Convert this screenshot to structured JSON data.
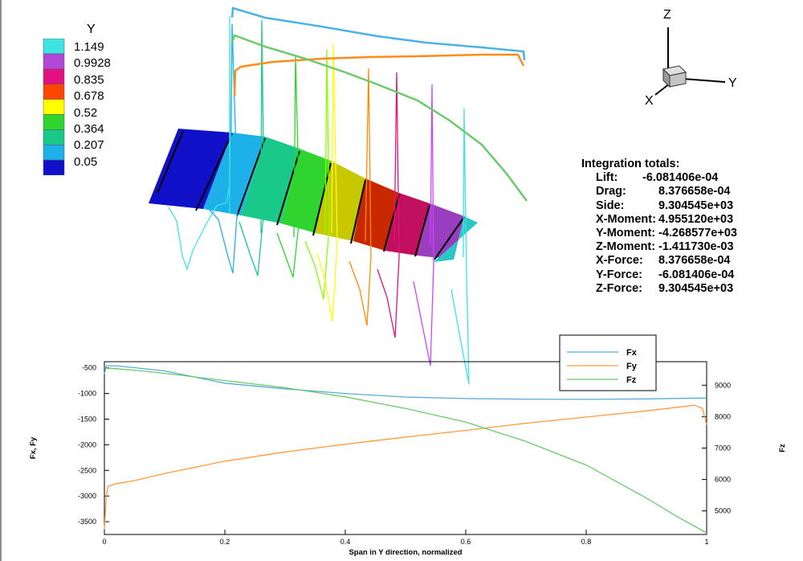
{
  "contour_legend": {
    "title": "Y",
    "levels": [
      "1.149",
      "0.9928",
      "0.835",
      "0.678",
      "0.52",
      "0.364",
      "0.207",
      "0.05"
    ],
    "colors": [
      "#3ee3e3",
      "#b048d8",
      "#e31082",
      "#ff4600",
      "#ffff00",
      "#2fd42f",
      "#18c98a",
      "#1eb0e8",
      "#1010c8"
    ]
  },
  "axis_triad": {
    "z": "Z",
    "y": "Y",
    "x": "X"
  },
  "integration_totals": {
    "title": "Integration totals:",
    "rows": [
      {
        "label": "Lift:",
        "value": "-6.081406e-04"
      },
      {
        "label": "Drag:",
        "value": "8.376658e-04"
      },
      {
        "label": "Side:",
        "value": "9.304545e+03"
      },
      {
        "label": "X-Moment:",
        "value": "4.955120e+03"
      },
      {
        "label": "Y-Moment:",
        "value": "-4.268577e+03"
      },
      {
        "label": "Z-Moment:",
        "value": "-1.411730e-03"
      },
      {
        "label": "X-Force:",
        "value": "8.376658e-04"
      },
      {
        "label": "Y-Force:",
        "value": "-6.081406e-04"
      },
      {
        "label": "Z-Force:",
        "value": "9.304545e+03"
      }
    ]
  },
  "chart_data": {
    "type": "line",
    "title": "",
    "xlabel": "Span in Y direction, normalized",
    "ylabel": "Fx, Fy",
    "y2label": "Fz",
    "xlim": [
      0,
      1
    ],
    "ylim": [
      -3750,
      -380
    ],
    "y2lim": [
      4250,
      9750
    ],
    "xticks": [
      "0",
      "0.2",
      "0.4",
      "0.6",
      "0.8",
      "1"
    ],
    "yticks": [
      "-500",
      "-1000",
      "-1500",
      "-2000",
      "-2500",
      "-3000",
      "-3500"
    ],
    "y2ticks": [
      "5000",
      "6000",
      "7000",
      "8000",
      "9000"
    ],
    "legend_position": "top-right",
    "series": [
      {
        "name": "Fx",
        "axis": "left",
        "color": "#5aacd8",
        "x": [
          0,
          0.003,
          0.02,
          0.1,
          0.2,
          0.3,
          0.4,
          0.5,
          0.6,
          0.7,
          0.8,
          0.9,
          0.99,
          1.0
        ],
        "y": [
          -620,
          -460,
          -460,
          -560,
          -800,
          -910,
          -1000,
          -1070,
          -1100,
          -1110,
          -1115,
          -1105,
          -1090,
          -1090
        ]
      },
      {
        "name": "Fy",
        "axis": "left",
        "color": "#ff9a3c",
        "x": [
          0,
          0.003,
          0.006,
          0.02,
          0.05,
          0.1,
          0.2,
          0.3,
          0.4,
          0.5,
          0.6,
          0.7,
          0.8,
          0.9,
          0.98,
          0.993,
          1.0
        ],
        "y": [
          -3650,
          -3000,
          -2810,
          -2760,
          -2700,
          -2560,
          -2320,
          -2140,
          -1990,
          -1850,
          -1720,
          -1580,
          -1460,
          -1340,
          -1230,
          -1290,
          -1610
        ]
      },
      {
        "name": "Fz",
        "axis": "right",
        "color": "#6cc96c",
        "x": [
          0,
          0.01,
          0.05,
          0.1,
          0.2,
          0.3,
          0.4,
          0.5,
          0.6,
          0.7,
          0.8,
          0.9,
          0.95,
          1.0
        ],
        "y": [
          9540,
          9540,
          9480,
          9380,
          9150,
          8920,
          8630,
          8260,
          7830,
          7210,
          6460,
          5410,
          4830,
          4300
        ]
      }
    ]
  }
}
